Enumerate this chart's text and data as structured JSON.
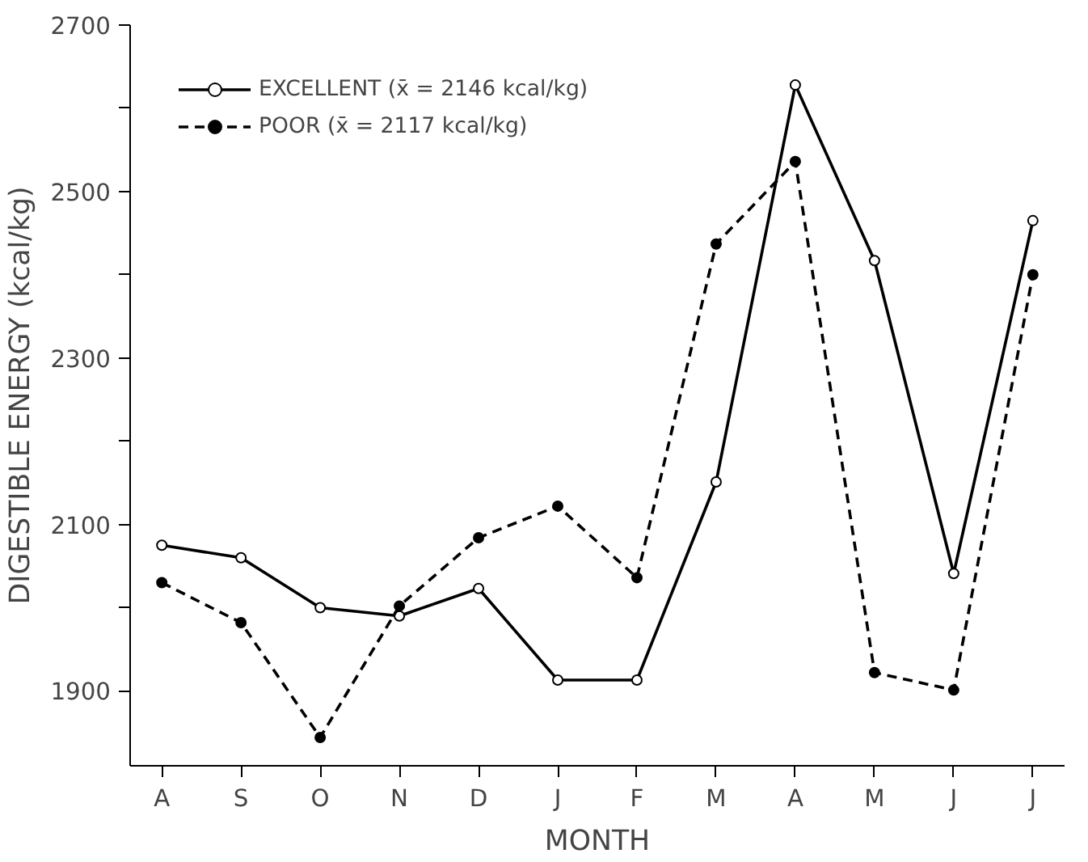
{
  "chart_data": {
    "type": "line",
    "xlabel": "MONTH",
    "ylabel": "DIGESTIBLE ENERGY (kcal/kg)",
    "categories": [
      "A",
      "S",
      "O",
      "N",
      "D",
      "J",
      "F",
      "M",
      "A",
      "M",
      "J",
      "J"
    ],
    "series": [
      {
        "name": "EXCELLENT (x̄ = 2146 kcal/kg)",
        "color": "#000000",
        "line_style": "solid",
        "values": [
          2075,
          2060,
          2000,
          1990,
          2023,
          1913,
          1913,
          2151,
          2628,
          2417,
          2041,
          2465
        ]
      },
      {
        "name": "POOR (x̄ = 2117 kcal/kg)",
        "color": "#000000",
        "line_style": "dashed",
        "values": [
          2030,
          1982,
          1844,
          2002,
          2084,
          2122,
          2036,
          2437,
          2536,
          1922,
          1901,
          2400
        ]
      }
    ],
    "ylim": [
      1810,
      2700
    ],
    "yticks": [
      1900,
      {
        "value": 2000,
        "label": null
      },
      2100,
      {
        "value": 2200,
        "label": null
      },
      2300,
      {
        "value": 2400,
        "label": null
      },
      2500,
      {
        "value": 2600,
        "label": null
      },
      2700
    ],
    "marker": "circle",
    "legend": "top left",
    "grid": false
  }
}
